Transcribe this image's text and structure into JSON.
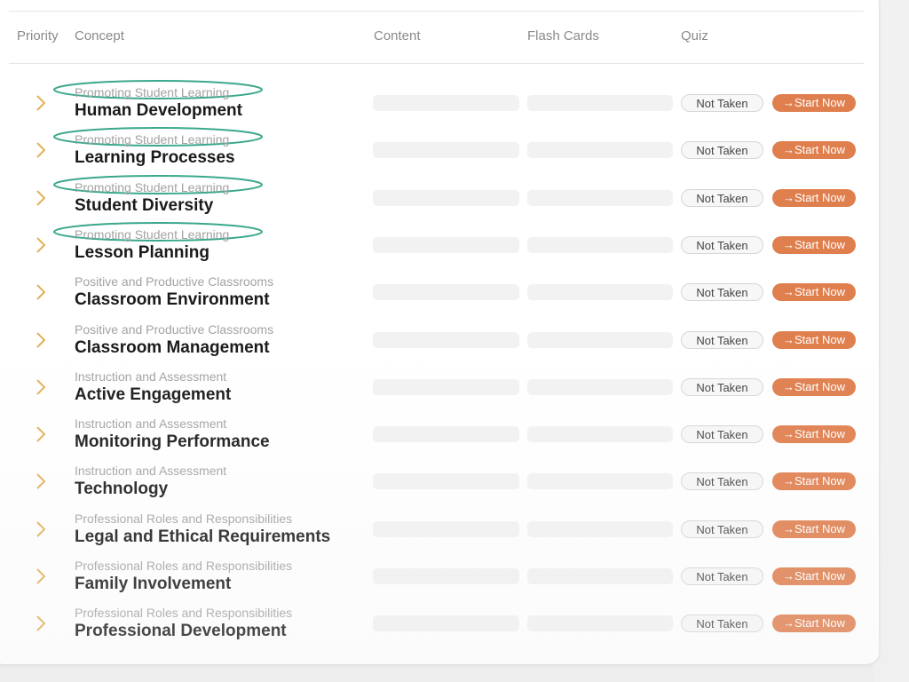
{
  "colors": {
    "accent": "#e07f4e",
    "chevron": "#e2b15a",
    "annotation": "#3aa88c"
  },
  "header": {
    "priority": "Priority",
    "concept": "Concept",
    "content": "Content",
    "flash_cards": "Flash Cards",
    "quiz": "Quiz"
  },
  "rows": [
    {
      "category": "Promoting Student Learning",
      "title": "Human Development",
      "quiz_status": "Not Taken",
      "action": "→Start Now",
      "highlighted": true
    },
    {
      "category": "Promoting Student Learning",
      "title": "Learning Processes",
      "quiz_status": "Not Taken",
      "action": "→Start Now",
      "highlighted": true
    },
    {
      "category": "Promoting Student Learning",
      "title": "Student Diversity",
      "quiz_status": "Not Taken",
      "action": "→Start Now",
      "highlighted": true
    },
    {
      "category": "Promoting Student Learning",
      "title": "Lesson Planning",
      "quiz_status": "Not Taken",
      "action": "→Start Now",
      "highlighted": true
    },
    {
      "category": "Positive and Productive Classrooms",
      "title": "Classroom Environment",
      "quiz_status": "Not Taken",
      "action": "→Start Now",
      "highlighted": false
    },
    {
      "category": "Positive and Productive Classrooms",
      "title": "Classroom Management",
      "quiz_status": "Not Taken",
      "action": "→Start Now",
      "highlighted": false
    },
    {
      "category": "Instruction and Assessment",
      "title": "Active Engagement",
      "quiz_status": "Not Taken",
      "action": "→Start Now",
      "highlighted": false
    },
    {
      "category": "Instruction and Assessment",
      "title": "Monitoring Performance",
      "quiz_status": "Not Taken",
      "action": "→Start Now",
      "highlighted": false
    },
    {
      "category": "Instruction and Assessment",
      "title": "Technology",
      "quiz_status": "Not Taken",
      "action": "→Start Now",
      "highlighted": false
    },
    {
      "category": "Professional Roles and Responsibilities",
      "title": "Legal and Ethical Requirements",
      "quiz_status": "Not Taken",
      "action": "→Start Now",
      "highlighted": false
    },
    {
      "category": "Professional Roles and Responsibilities",
      "title": "Family Involvement",
      "quiz_status": "Not Taken",
      "action": "→Start Now",
      "highlighted": false
    },
    {
      "category": "Professional Roles and Responsibilities",
      "title": "Professional Development",
      "quiz_status": "Not Taken",
      "action": "→Start Now",
      "highlighted": false
    }
  ]
}
